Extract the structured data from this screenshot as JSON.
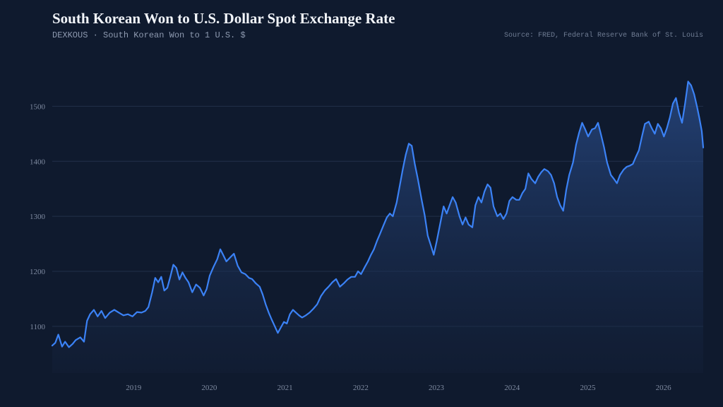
{
  "header": {
    "title": "South Korean Won to U.S. Dollar Spot Exchange Rate",
    "subtitle": "DEXKOUS · South Korean Won to 1 U.S. $",
    "source": "Source: FRED, Federal Reserve Bank of St. Louis"
  },
  "colors": {
    "background": "#0f1a2e",
    "line": "#3b82f6",
    "grid": "#22304a"
  },
  "chart_data": {
    "type": "area",
    "title": "South Korean Won to U.S. Dollar Spot Exchange Rate",
    "xlabel": "",
    "ylabel": "",
    "grid": true,
    "legend": "none",
    "xlim": [
      2018.0,
      2026.6
    ],
    "ylim": [
      1015,
      1575
    ],
    "yticks": [
      1100,
      1200,
      1300,
      1400,
      1500
    ],
    "xticks": [
      2019,
      2020,
      2021,
      2022,
      2023,
      2024,
      2025,
      2026
    ],
    "series": [
      {
        "points": [
          [
            2018.0,
            1065
          ],
          [
            2018.04,
            1070
          ],
          [
            2018.08,
            1085
          ],
          [
            2018.13,
            1063
          ],
          [
            2018.17,
            1072
          ],
          [
            2018.22,
            1062
          ],
          [
            2018.27,
            1068
          ],
          [
            2018.31,
            1075
          ],
          [
            2018.37,
            1080
          ],
          [
            2018.42,
            1072
          ],
          [
            2018.46,
            1110
          ],
          [
            2018.5,
            1122
          ],
          [
            2018.55,
            1130
          ],
          [
            2018.6,
            1118
          ],
          [
            2018.65,
            1128
          ],
          [
            2018.7,
            1115
          ],
          [
            2018.76,
            1125
          ],
          [
            2018.82,
            1130
          ],
          [
            2018.88,
            1125
          ],
          [
            2018.94,
            1120
          ],
          [
            2019.0,
            1122
          ],
          [
            2019.06,
            1118
          ],
          [
            2019.12,
            1126
          ],
          [
            2019.18,
            1125
          ],
          [
            2019.23,
            1128
          ],
          [
            2019.27,
            1135
          ],
          [
            2019.32,
            1162
          ],
          [
            2019.36,
            1188
          ],
          [
            2019.4,
            1180
          ],
          [
            2019.44,
            1190
          ],
          [
            2019.48,
            1165
          ],
          [
            2019.52,
            1170
          ],
          [
            2019.56,
            1190
          ],
          [
            2019.6,
            1212
          ],
          [
            2019.64,
            1206
          ],
          [
            2019.68,
            1185
          ],
          [
            2019.72,
            1198
          ],
          [
            2019.76,
            1188
          ],
          [
            2019.8,
            1180
          ],
          [
            2019.85,
            1162
          ],
          [
            2019.9,
            1176
          ],
          [
            2019.95,
            1170
          ],
          [
            2020.0,
            1156
          ],
          [
            2020.04,
            1168
          ],
          [
            2020.08,
            1192
          ],
          [
            2020.13,
            1208
          ],
          [
            2020.18,
            1222
          ],
          [
            2020.22,
            1240
          ],
          [
            2020.25,
            1232
          ],
          [
            2020.3,
            1218
          ],
          [
            2020.35,
            1225
          ],
          [
            2020.4,
            1232
          ],
          [
            2020.45,
            1210
          ],
          [
            2020.5,
            1198
          ],
          [
            2020.55,
            1195
          ],
          [
            2020.6,
            1188
          ],
          [
            2020.64,
            1186
          ],
          [
            2020.69,
            1178
          ],
          [
            2020.74,
            1172
          ],
          [
            2020.78,
            1158
          ],
          [
            2020.82,
            1140
          ],
          [
            2020.86,
            1125
          ],
          [
            2020.9,
            1112
          ],
          [
            2020.94,
            1100
          ],
          [
            2020.98,
            1088
          ],
          [
            2021.02,
            1098
          ],
          [
            2021.06,
            1108
          ],
          [
            2021.1,
            1105
          ],
          [
            2021.14,
            1122
          ],
          [
            2021.18,
            1130
          ],
          [
            2021.22,
            1125
          ],
          [
            2021.26,
            1120
          ],
          [
            2021.3,
            1116
          ],
          [
            2021.35,
            1120
          ],
          [
            2021.4,
            1125
          ],
          [
            2021.45,
            1132
          ],
          [
            2021.5,
            1140
          ],
          [
            2021.55,
            1155
          ],
          [
            2021.6,
            1165
          ],
          [
            2021.65,
            1172
          ],
          [
            2021.7,
            1180
          ],
          [
            2021.75,
            1186
          ],
          [
            2021.8,
            1172
          ],
          [
            2021.85,
            1178
          ],
          [
            2021.9,
            1185
          ],
          [
            2021.95,
            1190
          ],
          [
            2022.0,
            1190
          ],
          [
            2022.04,
            1200
          ],
          [
            2022.08,
            1195
          ],
          [
            2022.13,
            1208
          ],
          [
            2022.17,
            1218
          ],
          [
            2022.21,
            1230
          ],
          [
            2022.25,
            1240
          ],
          [
            2022.29,
            1255
          ],
          [
            2022.33,
            1268
          ],
          [
            2022.38,
            1285
          ],
          [
            2022.42,
            1298
          ],
          [
            2022.46,
            1305
          ],
          [
            2022.5,
            1300
          ],
          [
            2022.55,
            1325
          ],
          [
            2022.59,
            1355
          ],
          [
            2022.63,
            1385
          ],
          [
            2022.67,
            1412
          ],
          [
            2022.71,
            1432
          ],
          [
            2022.75,
            1428
          ],
          [
            2022.79,
            1395
          ],
          [
            2022.83,
            1368
          ],
          [
            2022.88,
            1330
          ],
          [
            2022.92,
            1302
          ],
          [
            2022.96,
            1265
          ],
          [
            2023.0,
            1248
          ],
          [
            2023.04,
            1230
          ],
          [
            2023.08,
            1255
          ],
          [
            2023.13,
            1290
          ],
          [
            2023.17,
            1318
          ],
          [
            2023.21,
            1305
          ],
          [
            2023.25,
            1320
          ],
          [
            2023.29,
            1335
          ],
          [
            2023.33,
            1325
          ],
          [
            2023.38,
            1300
          ],
          [
            2023.42,
            1285
          ],
          [
            2023.46,
            1298
          ],
          [
            2023.5,
            1285
          ],
          [
            2023.55,
            1280
          ],
          [
            2023.59,
            1320
          ],
          [
            2023.63,
            1335
          ],
          [
            2023.67,
            1325
          ],
          [
            2023.71,
            1345
          ],
          [
            2023.75,
            1358
          ],
          [
            2023.79,
            1352
          ],
          [
            2023.83,
            1318
          ],
          [
            2023.88,
            1300
          ],
          [
            2023.92,
            1305
          ],
          [
            2023.96,
            1295
          ],
          [
            2024.0,
            1305
          ],
          [
            2024.04,
            1328
          ],
          [
            2024.08,
            1335
          ],
          [
            2024.13,
            1330
          ],
          [
            2024.17,
            1330
          ],
          [
            2024.21,
            1342
          ],
          [
            2024.25,
            1350
          ],
          [
            2024.29,
            1378
          ],
          [
            2024.33,
            1368
          ],
          [
            2024.38,
            1360
          ],
          [
            2024.42,
            1372
          ],
          [
            2024.46,
            1380
          ],
          [
            2024.5,
            1386
          ],
          [
            2024.55,
            1382
          ],
          [
            2024.59,
            1375
          ],
          [
            2024.63,
            1360
          ],
          [
            2024.67,
            1335
          ],
          [
            2024.71,
            1320
          ],
          [
            2024.75,
            1310
          ],
          [
            2024.79,
            1348
          ],
          [
            2024.83,
            1375
          ],
          [
            2024.88,
            1398
          ],
          [
            2024.92,
            1430
          ],
          [
            2024.96,
            1452
          ],
          [
            2025.0,
            1470
          ],
          [
            2025.04,
            1458
          ],
          [
            2025.08,
            1445
          ],
          [
            2025.13,
            1458
          ],
          [
            2025.17,
            1460
          ],
          [
            2025.21,
            1470
          ],
          [
            2025.25,
            1448
          ],
          [
            2025.29,
            1425
          ],
          [
            2025.33,
            1398
          ],
          [
            2025.38,
            1375
          ],
          [
            2025.42,
            1368
          ],
          [
            2025.46,
            1360
          ],
          [
            2025.5,
            1375
          ],
          [
            2025.55,
            1385
          ],
          [
            2025.59,
            1390
          ],
          [
            2025.63,
            1392
          ],
          [
            2025.67,
            1395
          ],
          [
            2025.71,
            1408
          ],
          [
            2025.75,
            1420
          ],
          [
            2025.79,
            1445
          ],
          [
            2025.83,
            1468
          ],
          [
            2025.88,
            1472
          ],
          [
            2025.92,
            1460
          ],
          [
            2025.96,
            1450
          ],
          [
            2026.0,
            1468
          ],
          [
            2026.04,
            1460
          ],
          [
            2026.08,
            1445
          ],
          [
            2026.12,
            1460
          ],
          [
            2026.16,
            1480
          ],
          [
            2026.2,
            1505
          ],
          [
            2026.24,
            1515
          ],
          [
            2026.28,
            1488
          ],
          [
            2026.32,
            1470
          ],
          [
            2026.36,
            1505
          ],
          [
            2026.4,
            1545
          ],
          [
            2026.44,
            1538
          ],
          [
            2026.48,
            1522
          ],
          [
            2026.52,
            1498
          ],
          [
            2026.55,
            1478
          ],
          [
            2026.58,
            1455
          ],
          [
            2026.6,
            1425
          ]
        ]
      }
    ]
  }
}
